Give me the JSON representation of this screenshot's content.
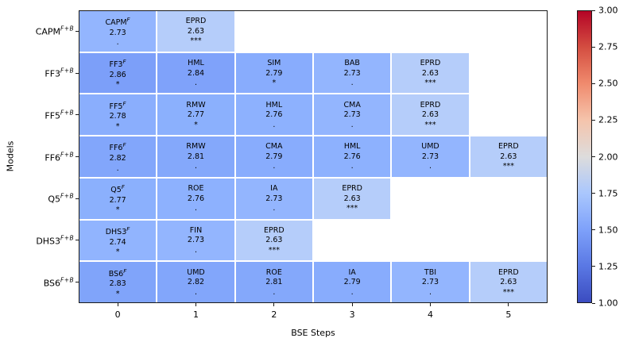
{
  "chart_data": {
    "type": "heatmap",
    "title": "",
    "xlabel": "BSE Steps",
    "ylabel": "Models",
    "x_tick_labels": [
      "0",
      "1",
      "2",
      "3",
      "4",
      "5"
    ],
    "grid": false,
    "colorbar": {
      "min": 1.0,
      "max": 3.0,
      "colormap": "coolwarm",
      "tick_labels": [
        "3.00",
        "2.75",
        "2.50",
        "2.25",
        "2.00",
        "1.75",
        "1.50",
        "1.25",
        "1.00"
      ],
      "gradient_bottom_to_top": [
        "#3b4cc0",
        "#5a78e4",
        "#7ea1fa",
        "#aac7fd",
        "#dddcdc",
        "#f5c4ac",
        "#f08b6e",
        "#d44e41",
        "#b40426"
      ]
    },
    "rows": [
      {
        "model": "CAPM",
        "model_sup": "F+B",
        "cells": [
          {
            "col": 0,
            "factor": "CAPM",
            "factor_sup": "F",
            "value": "2.73",
            "significance": ".",
            "color": "#93b5fe"
          },
          {
            "col": 1,
            "factor": "EPRD",
            "factor_sup": "",
            "value": "2.63",
            "significance": "***",
            "color": "#b5cdfa"
          }
        ]
      },
      {
        "model": "FF3",
        "model_sup": "F+B",
        "cells": [
          {
            "col": 0,
            "factor": "FF3",
            "factor_sup": "F",
            "value": "2.86",
            "significance": "*",
            "color": "#7c9ff9"
          },
          {
            "col": 1,
            "factor": "HML",
            "factor_sup": "",
            "value": "2.84",
            "significance": ".",
            "color": "#7fa2fa"
          },
          {
            "col": 2,
            "factor": "SIM",
            "factor_sup": "",
            "value": "2.79",
            "significance": "*",
            "color": "#88acfd"
          },
          {
            "col": 3,
            "factor": "BAB",
            "factor_sup": "",
            "value": "2.73",
            "significance": ".",
            "color": "#93b5fe"
          },
          {
            "col": 4,
            "factor": "EPRD",
            "factor_sup": "",
            "value": "2.63",
            "significance": "***",
            "color": "#b5cdfa"
          }
        ]
      },
      {
        "model": "FF5",
        "model_sup": "F+B",
        "cells": [
          {
            "col": 0,
            "factor": "FF5",
            "factor_sup": "F",
            "value": "2.78",
            "significance": "*",
            "color": "#8aaefd"
          },
          {
            "col": 1,
            "factor": "RMW",
            "factor_sup": "",
            "value": "2.77",
            "significance": "*",
            "color": "#8bb0fd"
          },
          {
            "col": 2,
            "factor": "HML",
            "factor_sup": "",
            "value": "2.76",
            "significance": ".",
            "color": "#8db1fe"
          },
          {
            "col": 3,
            "factor": "CMA",
            "factor_sup": "",
            "value": "2.73",
            "significance": ".",
            "color": "#93b5fe"
          },
          {
            "col": 4,
            "factor": "EPRD",
            "factor_sup": "",
            "value": "2.63",
            "significance": "***",
            "color": "#b5cdfa"
          }
        ]
      },
      {
        "model": "FF6",
        "model_sup": "F+B",
        "cells": [
          {
            "col": 0,
            "factor": "FF6",
            "factor_sup": "F",
            "value": "2.82",
            "significance": ".",
            "color": "#82a6fb"
          },
          {
            "col": 1,
            "factor": "RMW",
            "factor_sup": "",
            "value": "2.81",
            "significance": ".",
            "color": "#84a8fb"
          },
          {
            "col": 2,
            "factor": "CMA",
            "factor_sup": "",
            "value": "2.79",
            "significance": ".",
            "color": "#88acfd"
          },
          {
            "col": 3,
            "factor": "HML",
            "factor_sup": "",
            "value": "2.76",
            "significance": ".",
            "color": "#8db1fe"
          },
          {
            "col": 4,
            "factor": "UMD",
            "factor_sup": "",
            "value": "2.73",
            "significance": ".",
            "color": "#93b5fe"
          },
          {
            "col": 5,
            "factor": "EPRD",
            "factor_sup": "",
            "value": "2.63",
            "significance": "***",
            "color": "#b5cdfa"
          }
        ]
      },
      {
        "model": "Q5",
        "model_sup": "F+B",
        "cells": [
          {
            "col": 0,
            "factor": "Q5",
            "factor_sup": "F",
            "value": "2.77",
            "significance": "*",
            "color": "#8bb0fd"
          },
          {
            "col": 1,
            "factor": "ROE",
            "factor_sup": "",
            "value": "2.76",
            "significance": ".",
            "color": "#8db1fe"
          },
          {
            "col": 2,
            "factor": "IA",
            "factor_sup": "",
            "value": "2.73",
            "significance": ".",
            "color": "#93b5fe"
          },
          {
            "col": 3,
            "factor": "EPRD",
            "factor_sup": "",
            "value": "2.63",
            "significance": "***",
            "color": "#b5cdfa"
          }
        ]
      },
      {
        "model": "DHS3",
        "model_sup": "F+B",
        "cells": [
          {
            "col": 0,
            "factor": "DHS3",
            "factor_sup": "F",
            "value": "2.74",
            "significance": "*",
            "color": "#91b4fe"
          },
          {
            "col": 1,
            "factor": "FIN",
            "factor_sup": "",
            "value": "2.73",
            "significance": ".",
            "color": "#93b5fe"
          },
          {
            "col": 2,
            "factor": "EPRD",
            "factor_sup": "",
            "value": "2.63",
            "significance": "***",
            "color": "#b5cdfa"
          }
        ]
      },
      {
        "model": "BS6",
        "model_sup": "F+B",
        "cells": [
          {
            "col": 0,
            "factor": "BS6",
            "factor_sup": "F",
            "value": "2.83",
            "significance": "*",
            "color": "#80a4fa"
          },
          {
            "col": 1,
            "factor": "UMD",
            "factor_sup": "",
            "value": "2.82",
            "significance": ".",
            "color": "#82a6fb"
          },
          {
            "col": 2,
            "factor": "ROE",
            "factor_sup": "",
            "value": "2.81",
            "significance": ".",
            "color": "#84a8fb"
          },
          {
            "col": 3,
            "factor": "IA",
            "factor_sup": "",
            "value": "2.79",
            "significance": ".",
            "color": "#88acfd"
          },
          {
            "col": 4,
            "factor": "TBI",
            "factor_sup": "",
            "value": "2.73",
            "significance": ".",
            "color": "#93b5fe"
          },
          {
            "col": 5,
            "factor": "EPRD",
            "factor_sup": "",
            "value": "2.63",
            "significance": "***",
            "color": "#b5cdfa"
          }
        ]
      }
    ]
  }
}
